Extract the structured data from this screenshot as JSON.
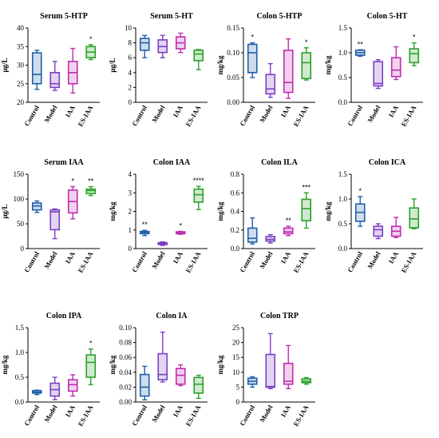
{
  "chart_data": [
    {
      "type": "box",
      "title": "Serum 5-HTP",
      "ylabel": "μg/L",
      "yticks": [
        "20",
        "25",
        "30",
        "35",
        "40"
      ],
      "ylim": [
        20,
        40
      ],
      "categories": [
        "Control",
        "Model",
        "IAA",
        "ES-IAA"
      ],
      "colors": [
        "#1f5fa8",
        "#7b3fc4",
        "#c02cb0",
        "#2aa02a"
      ],
      "boxes": [
        {
          "min": 23.5,
          "q1": 25,
          "median": 27.5,
          "q3": 33.3,
          "max": 34,
          "sig": ""
        },
        {
          "min": 23.2,
          "q1": 24,
          "median": 25,
          "q3": 28,
          "max": 31,
          "sig": ""
        },
        {
          "min": 22.5,
          "q1": 25,
          "median": 28,
          "q3": 31,
          "max": 34.5,
          "sig": ""
        },
        {
          "min": 31.5,
          "q1": 32,
          "median": 33.5,
          "q3": 35,
          "max": 35.5,
          "sig": "*"
        }
      ]
    },
    {
      "type": "box",
      "title": "Serum 5-HT",
      "ylabel": "μg/L",
      "yticks": [
        "0",
        "2",
        "4",
        "6",
        "8",
        "10"
      ],
      "ylim": [
        0,
        10
      ],
      "categories": [
        "Control",
        "Model",
        "IAA",
        "ES-IAA"
      ],
      "colors": [
        "#1f5fa8",
        "#7b3fc4",
        "#c02cb0",
        "#2aa02a"
      ],
      "boxes": [
        {
          "min": 6,
          "q1": 7,
          "median": 8,
          "q3": 8.6,
          "max": 9,
          "sig": ""
        },
        {
          "min": 6,
          "q1": 6.7,
          "median": 7.5,
          "q3": 8.4,
          "max": 9,
          "sig": ""
        },
        {
          "min": 6.7,
          "q1": 7.2,
          "median": 8,
          "q3": 8.8,
          "max": 9.3,
          "sig": ""
        },
        {
          "min": 4.4,
          "q1": 5.6,
          "median": 6.5,
          "q3": 7,
          "max": 7.1,
          "sig": ""
        }
      ]
    },
    {
      "type": "box",
      "title": "Colon 5-HTP",
      "ylabel": "mg/kg",
      "yticks": [
        "0.00",
        "0.05",
        "0.10",
        "0.15"
      ],
      "ylim": [
        0,
        0.15
      ],
      "categories": [
        "Control",
        "Model",
        "IAA",
        "ES-IAA"
      ],
      "colors": [
        "#1f5fa8",
        "#7b3fc4",
        "#c02cb0",
        "#2aa02a"
      ],
      "boxes": [
        {
          "min": 0.05,
          "q1": 0.06,
          "median": 0.1,
          "q3": 0.117,
          "max": 0.12,
          "sig": "*"
        },
        {
          "min": 0.01,
          "q1": 0.017,
          "median": 0.027,
          "q3": 0.056,
          "max": 0.078,
          "sig": ""
        },
        {
          "min": 0.008,
          "q1": 0.02,
          "median": 0.04,
          "q3": 0.105,
          "max": 0.128,
          "sig": ""
        },
        {
          "min": 0.045,
          "q1": 0.048,
          "median": 0.08,
          "q3": 0.1,
          "max": 0.11,
          "sig": "*"
        }
      ]
    },
    {
      "type": "box",
      "title": "Colon 5-HT",
      "ylabel": "mg/kg",
      "yticks": [
        "0.0",
        "0.5",
        "1.0",
        "1.5"
      ],
      "ylim": [
        0,
        1.5
      ],
      "categories": [
        "Control",
        "Model",
        "IAA",
        "ES-IAA"
      ],
      "colors": [
        "#1f5fa8",
        "#7b3fc4",
        "#c02cb0",
        "#2aa02a"
      ],
      "boxes": [
        {
          "min": 0.93,
          "q1": 0.95,
          "median": 1.0,
          "q3": 1.05,
          "max": 1.06,
          "sig": "**"
        },
        {
          "min": 0.28,
          "q1": 0.33,
          "median": 0.38,
          "q3": 0.82,
          "max": 0.86,
          "sig": ""
        },
        {
          "min": 0.46,
          "q1": 0.52,
          "median": 0.65,
          "q3": 0.9,
          "max": 1.12,
          "sig": ""
        },
        {
          "min": 0.74,
          "q1": 0.8,
          "median": 0.98,
          "q3": 1.08,
          "max": 1.2,
          "sig": "*"
        }
      ]
    },
    {
      "type": "box",
      "title": "Serum IAA",
      "ylabel": "μg/L",
      "yticks": [
        "0",
        "50",
        "100",
        "150"
      ],
      "ylim": [
        0,
        150
      ],
      "categories": [
        "Control",
        "Model",
        "IAA",
        "ES-IAA"
      ],
      "colors": [
        "#1f5fa8",
        "#7b3fc4",
        "#c02cb0",
        "#2aa02a"
      ],
      "boxes": [
        {
          "min": 73,
          "q1": 78,
          "median": 86,
          "q3": 92,
          "max": 96,
          "sig": ""
        },
        {
          "min": 20,
          "q1": 38,
          "median": 74,
          "q3": 78,
          "max": 80,
          "sig": ""
        },
        {
          "min": 60,
          "q1": 72,
          "median": 95,
          "q3": 118,
          "max": 125,
          "sig": "*"
        },
        {
          "min": 107,
          "q1": 111,
          "median": 117,
          "q3": 120,
          "max": 125,
          "sig": "**"
        }
      ]
    },
    {
      "type": "box",
      "title": "Colon IAA",
      "ylabel": "mg/kg",
      "yticks": [
        "0",
        "1",
        "2",
        "3",
        "4"
      ],
      "ylim": [
        0,
        4
      ],
      "categories": [
        "Control",
        "Model",
        "IAA",
        "ES-IAA"
      ],
      "colors": [
        "#1f5fa8",
        "#7b3fc4",
        "#c02cb0",
        "#2aa02a"
      ],
      "boxes": [
        {
          "min": 0.7,
          "q1": 0.8,
          "median": 0.87,
          "q3": 0.92,
          "max": 0.98,
          "sig": "**"
        },
        {
          "min": 0.17,
          "q1": 0.22,
          "median": 0.27,
          "q3": 0.32,
          "max": 0.36,
          "sig": ""
        },
        {
          "min": 0.77,
          "q1": 0.8,
          "median": 0.86,
          "q3": 0.9,
          "max": 0.93,
          "sig": "*"
        },
        {
          "min": 2.1,
          "q1": 2.5,
          "median": 2.9,
          "q3": 3.2,
          "max": 3.35,
          "sig": "****"
        }
      ]
    },
    {
      "type": "box",
      "title": "Colon ILA",
      "ylabel": "mg/kg",
      "yticks": [
        "0.0",
        "0.2",
        "0.4",
        "0.6",
        "0.8"
      ],
      "ylim": [
        0,
        0.8
      ],
      "categories": [
        "Control",
        "Model",
        "IAA",
        "ES-IAA"
      ],
      "colors": [
        "#1f5fa8",
        "#7b3fc4",
        "#c02cb0",
        "#2aa02a"
      ],
      "boxes": [
        {
          "min": 0.05,
          "q1": 0.07,
          "median": 0.11,
          "q3": 0.22,
          "max": 0.33,
          "sig": ""
        },
        {
          "min": 0.06,
          "q1": 0.08,
          "median": 0.1,
          "q3": 0.13,
          "max": 0.15,
          "sig": ""
        },
        {
          "min": 0.14,
          "q1": 0.16,
          "median": 0.18,
          "q3": 0.22,
          "max": 0.24,
          "sig": "**"
        },
        {
          "min": 0.22,
          "q1": 0.3,
          "median": 0.43,
          "q3": 0.53,
          "max": 0.6,
          "sig": "***"
        }
      ]
    },
    {
      "type": "box",
      "title": "Colon ICA",
      "ylabel": "mg/kg",
      "yticks": [
        "0.0",
        "0.5",
        "1.0",
        "1.5"
      ],
      "ylim": [
        0,
        1.5
      ],
      "categories": [
        "Control",
        "Model",
        "IAA",
        "ES-IAA"
      ],
      "colors": [
        "#1f5fa8",
        "#7b3fc4",
        "#c02cb0",
        "#2aa02a"
      ],
      "boxes": [
        {
          "min": 0.45,
          "q1": 0.55,
          "median": 0.73,
          "q3": 0.9,
          "max": 1.05,
          "sig": "*"
        },
        {
          "min": 0.2,
          "q1": 0.25,
          "median": 0.38,
          "q3": 0.45,
          "max": 0.5,
          "sig": ""
        },
        {
          "min": 0.22,
          "q1": 0.25,
          "median": 0.35,
          "q3": 0.45,
          "max": 0.63,
          "sig": ""
        },
        {
          "min": 0.4,
          "q1": 0.42,
          "median": 0.6,
          "q3": 0.82,
          "max": 1.0,
          "sig": ""
        }
      ]
    },
    {
      "type": "box",
      "title": "Colon IPA",
      "ylabel": "mg/kg",
      "yticks": [
        "0.0",
        "0.5",
        "1.0",
        "1.5"
      ],
      "ylim": [
        0,
        1.5
      ],
      "categories": [
        "Control",
        "Model",
        "IAA",
        "ES-IAA"
      ],
      "colors": [
        "#1f5fa8",
        "#7b3fc4",
        "#c02cb0",
        "#2aa02a"
      ],
      "boxes": [
        {
          "min": 0.15,
          "q1": 0.18,
          "median": 0.2,
          "q3": 0.23,
          "max": 0.24,
          "sig": ""
        },
        {
          "min": 0.05,
          "q1": 0.12,
          "median": 0.25,
          "q3": 0.38,
          "max": 0.5,
          "sig": ""
        },
        {
          "min": 0.12,
          "q1": 0.22,
          "median": 0.35,
          "q3": 0.45,
          "max": 0.55,
          "sig": ""
        },
        {
          "min": 0.35,
          "q1": 0.5,
          "median": 0.8,
          "q3": 0.95,
          "max": 1.07,
          "sig": "*"
        }
      ]
    },
    {
      "type": "box",
      "title": "Colon IA",
      "ylabel": "mg/kg",
      "yticks": [
        "0.00",
        "0.02",
        "0.04",
        "0.06",
        "0.08",
        "0.10"
      ],
      "ylim": [
        0,
        0.1
      ],
      "categories": [
        "Control",
        "Model",
        "IAA",
        "ES-IAA"
      ],
      "colors": [
        "#1f5fa8",
        "#7b3fc4",
        "#c02cb0",
        "#2aa02a"
      ],
      "boxes": [
        {
          "min": 0.003,
          "q1": 0.008,
          "median": 0.02,
          "q3": 0.037,
          "max": 0.048,
          "sig": ""
        },
        {
          "min": 0.027,
          "q1": 0.03,
          "median": 0.037,
          "q3": 0.065,
          "max": 0.094,
          "sig": ""
        },
        {
          "min": 0.022,
          "q1": 0.024,
          "median": 0.036,
          "q3": 0.045,
          "max": 0.05,
          "sig": ""
        },
        {
          "min": 0.005,
          "q1": 0.012,
          "median": 0.024,
          "q3": 0.033,
          "max": 0.036,
          "sig": ""
        }
      ]
    },
    {
      "type": "box",
      "title": "Colon TRP",
      "ylabel": "mg/kg",
      "yticks": [
        "0",
        "5",
        "10",
        "15",
        "20",
        "25"
      ],
      "ylim": [
        0,
        25
      ],
      "categories": [
        "Control",
        "Model",
        "IAA",
        "ES-IAA"
      ],
      "colors": [
        "#1f5fa8",
        "#7b3fc4",
        "#c02cb0",
        "#2aa02a"
      ],
      "boxes": [
        {
          "min": 5,
          "q1": 6,
          "median": 7,
          "q3": 8,
          "max": 8.5,
          "sig": ""
        },
        {
          "min": 4.5,
          "q1": 5,
          "median": 5.2,
          "q3": 16,
          "max": 23,
          "sig": ""
        },
        {
          "min": 4.5,
          "q1": 6,
          "median": 7,
          "q3": 13,
          "max": 19,
          "sig": ""
        },
        {
          "min": 6,
          "q1": 6.5,
          "median": 7,
          "q3": 7.8,
          "max": 8.2,
          "sig": ""
        }
      ]
    }
  ]
}
